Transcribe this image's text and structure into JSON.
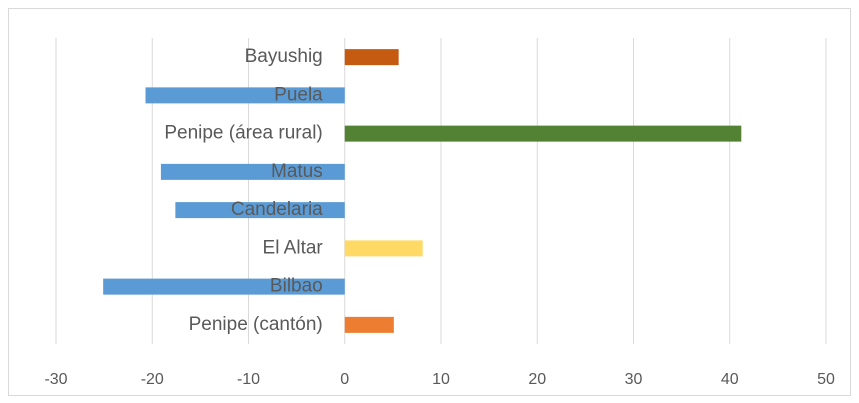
{
  "chart_data": {
    "type": "barh",
    "categories": [
      "Bayushig",
      "Puela",
      "Penipe (área rural)",
      "Matus",
      "Candelaria",
      "El Altar",
      "Bilbao",
      "Penipe (cantón)"
    ],
    "values": [
      5.6,
      -20.7,
      41.2,
      -19.1,
      -17.6,
      8.1,
      -25.1,
      5.1
    ],
    "colors": [
      "#c55a11",
      "#5b9bd5",
      "#548235",
      "#5b9bd5",
      "#5b9bd5",
      "#ffd966",
      "#5b9bd5",
      "#ed7d31"
    ],
    "xlim": [
      -30,
      50
    ],
    "xticks": [
      -30,
      -20,
      -10,
      0,
      10,
      20,
      30,
      40,
      50
    ],
    "grid": true
  }
}
